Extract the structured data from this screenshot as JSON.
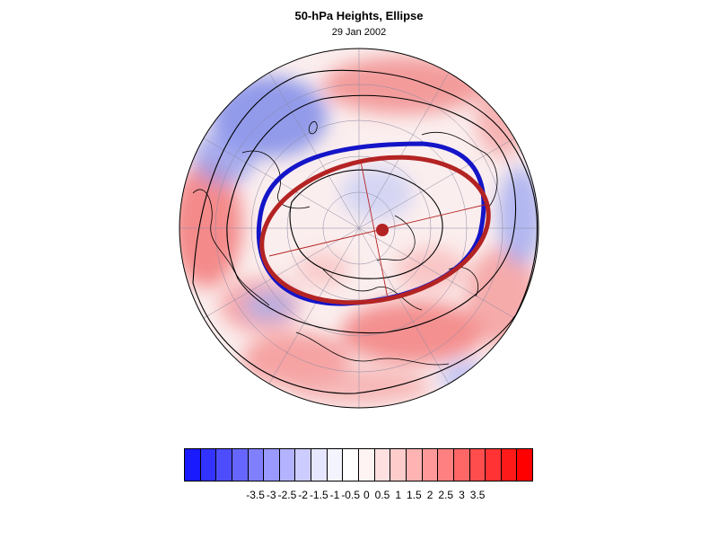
{
  "title": "50-hPa Heights, Ellipse",
  "subtitle": "29 Jan 2002",
  "colors": {
    "blue_ellipse": "#1414c8",
    "red_ellipse": "#b42323",
    "anomaly_positive": "#ff2020",
    "anomaly_negative": "#2020ff",
    "contour": "#000000"
  },
  "colorbar": {
    "fill_colors": [
      "#1a1aff",
      "#3333ff",
      "#4d4dff",
      "#6666ff",
      "#8080ff",
      "#9999ff",
      "#b3b3ff",
      "#ccccff",
      "#e6e6ff",
      "#f4f4ff",
      "#ffffff",
      "#fff4f4",
      "#ffe0e0",
      "#ffcccc",
      "#ffb3b3",
      "#ff9999",
      "#ff8080",
      "#ff6666",
      "#ff4d4d",
      "#ff3333",
      "#ff1a1a",
      "#ff0000"
    ],
    "labels": [
      "-3.5",
      "-3",
      "-2.5",
      "-2",
      "-1.5",
      "-1",
      "-0.5",
      "0",
      "0.5",
      "1",
      "1.5",
      "2",
      "2.5",
      "3",
      "3.5"
    ]
  }
}
